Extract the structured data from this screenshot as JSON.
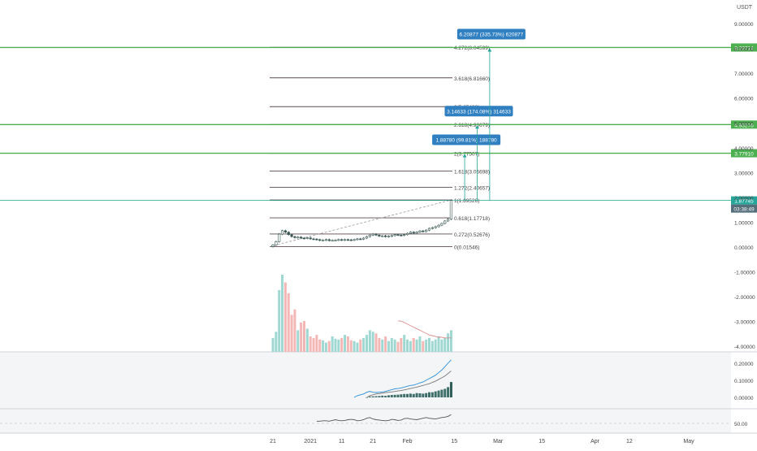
{
  "currency_label": "USDT",
  "chart_data": {
    "type": "candlestick",
    "price_axis": {
      "ticks": [
        {
          "v": 9,
          "label": "9.00000"
        },
        {
          "v": 8,
          "label": "8.00000"
        },
        {
          "v": 7,
          "label": "7.00000"
        },
        {
          "v": 6,
          "label": "6.00000"
        },
        {
          "v": 5,
          "label": "5.00000"
        },
        {
          "v": 4,
          "label": "4.00000"
        },
        {
          "v": 3,
          "label": "3.00000"
        },
        {
          "v": 2,
          "label": "2.00000"
        },
        {
          "v": 1,
          "label": "1.00000"
        },
        {
          "v": 0,
          "label": "0.00000"
        },
        {
          "v": -1,
          "label": "-1.00000"
        },
        {
          "v": -2,
          "label": "-2.00000"
        },
        {
          "v": -3,
          "label": "-3.00000"
        },
        {
          "v": -4,
          "label": "-4.00000"
        }
      ]
    },
    "time_axis": {
      "ticks": [
        {
          "i": 0,
          "label": "21"
        },
        {
          "i": 12,
          "label": "2021"
        },
        {
          "i": 22,
          "label": "11"
        },
        {
          "i": 32,
          "label": "21"
        },
        {
          "i": 43,
          "label": "Feb"
        },
        {
          "i": 58,
          "label": "15"
        },
        {
          "i": 72,
          "label": "Mar"
        },
        {
          "i": 86,
          "label": "15"
        },
        {
          "i": 103,
          "label": "Apr"
        },
        {
          "i": 114,
          "label": "12"
        },
        {
          "i": 133,
          "label": "May"
        }
      ]
    },
    "fib_levels": [
      {
        "ratio": 0,
        "price": 0.01546,
        "label": "0(0.01546)"
      },
      {
        "ratio": 0.272,
        "price": 0.52676,
        "label": "0.272(0.52676)"
      },
      {
        "ratio": 0.618,
        "price": 1.17718,
        "label": "0.618(1.17718)"
      },
      {
        "ratio": 1,
        "price": 1.89526,
        "label": "1(1.89526)"
      },
      {
        "ratio": 1.272,
        "price": 2.40657,
        "label": "1.272(2.40657)"
      },
      {
        "ratio": 1.618,
        "price": 3.05698,
        "label": "1.618(3.05698)"
      },
      {
        "ratio": 2,
        "price": 3.77507,
        "label": "2(3.77507)"
      },
      {
        "ratio": 2.618,
        "price": 4.93679,
        "label": "2.618(4.93679)"
      },
      {
        "ratio": 3,
        "price": 5.65488,
        "label": "3(5.65488)"
      },
      {
        "ratio": 3.618,
        "price": 6.8166,
        "label": "3.618(6.81660)"
      },
      {
        "ratio": 4.272,
        "price": 8.04599,
        "label": "4.272(8.04599)"
      }
    ],
    "horizontal_lines": [
      {
        "price": 8.03714,
        "label": "8.03714",
        "color": "#4caf50"
      },
      {
        "price": 4.93276,
        "label": "4.93276",
        "color": "#4caf50"
      },
      {
        "price": 3.7791,
        "label": "3.77910",
        "color": "#4caf50"
      },
      {
        "price": 1.87745,
        "label": "1.87745",
        "color": "#26a69a"
      }
    ],
    "current_price": {
      "price": 1.87745,
      "label": "1.87745",
      "countdown": "03:38:49"
    },
    "targets": [
      {
        "start_i": 66,
        "target": 3.7791,
        "label": "1.88780 (99.81%) 188780"
      },
      {
        "start_i": 70,
        "target": 4.93276,
        "label": "3.14633 (174.08%) 314633"
      },
      {
        "start_i": 74,
        "target": 8.03714,
        "label": "6.20877 (335.73%) 620877"
      }
    ],
    "closes": [
      0.08,
      0.22,
      0.52,
      0.66,
      0.6,
      0.5,
      0.42,
      0.38,
      0.4,
      0.36,
      0.35,
      0.37,
      0.33,
      0.32,
      0.3,
      0.27,
      0.28,
      0.3,
      0.26,
      0.27,
      0.28,
      0.3,
      0.28,
      0.3,
      0.29,
      0.28,
      0.3,
      0.33,
      0.32,
      0.36,
      0.42,
      0.48,
      0.52,
      0.48,
      0.44,
      0.45,
      0.42,
      0.44,
      0.46,
      0.5,
      0.48,
      0.47,
      0.5,
      0.55,
      0.6,
      0.56,
      0.6,
      0.65,
      0.62,
      0.68,
      0.75,
      0.78,
      0.82,
      0.88,
      0.95,
      1.05,
      1.12,
      1.87745
    ],
    "volumes": [
      18,
      26,
      80,
      100,
      90,
      76,
      48,
      55,
      28,
      38,
      40,
      30,
      20,
      18,
      22,
      16,
      15,
      12,
      14,
      20,
      17,
      16,
      18,
      22,
      20,
      15,
      14,
      12,
      16,
      18,
      22,
      28,
      26,
      24,
      18,
      16,
      20,
      14,
      18,
      16,
      13,
      18,
      22,
      16,
      14,
      18,
      16,
      20,
      14,
      16,
      18,
      14,
      16,
      20,
      16,
      18,
      24,
      28
    ],
    "volume_ma": [
      null,
      null,
      null,
      null,
      null,
      null,
      null,
      null,
      null,
      null,
      null,
      null,
      null,
      null,
      null,
      null,
      null,
      null,
      null,
      null,
      null,
      null,
      null,
      null,
      null,
      null,
      null,
      null,
      null,
      null,
      null,
      null,
      null,
      null,
      null,
      null,
      null,
      null,
      null,
      null,
      40,
      40,
      38,
      36,
      34,
      32,
      30,
      28,
      26,
      24,
      22,
      21,
      20,
      19,
      19,
      18,
      18,
      18
    ],
    "macd": [
      null,
      null,
      null,
      null,
      null,
      null,
      null,
      null,
      null,
      null,
      null,
      null,
      null,
      null,
      null,
      null,
      null,
      null,
      null,
      null,
      null,
      null,
      null,
      null,
      null,
      null,
      0.0,
      0.01,
      0.015,
      0.02,
      0.03,
      0.035,
      0.03,
      0.028,
      0.03,
      0.032,
      0.035,
      0.04,
      0.045,
      0.05,
      0.052,
      0.055,
      0.06,
      0.065,
      0.07,
      0.072,
      0.078,
      0.085,
      0.09,
      0.1,
      0.11,
      0.12,
      0.13,
      0.145,
      0.16,
      0.18,
      0.2,
      0.22
    ],
    "macd_signal": [
      null,
      null,
      null,
      null,
      null,
      null,
      null,
      null,
      null,
      null,
      null,
      null,
      null,
      null,
      null,
      null,
      null,
      null,
      null,
      null,
      null,
      null,
      null,
      null,
      null,
      null,
      null,
      null,
      null,
      null,
      0.0,
      0.01,
      0.015,
      0.02,
      0.022,
      0.025,
      0.028,
      0.03,
      0.032,
      0.035,
      0.038,
      0.04,
      0.044,
      0.048,
      0.052,
      0.056,
      0.06,
      0.065,
      0.07,
      0.075,
      0.08,
      0.088,
      0.095,
      0.105,
      0.115,
      0.125,
      0.14,
      0.155
    ],
    "macd_hist": [
      null,
      null,
      null,
      null,
      null,
      null,
      null,
      null,
      null,
      null,
      null,
      null,
      null,
      null,
      null,
      null,
      null,
      null,
      null,
      null,
      null,
      null,
      null,
      null,
      null,
      null,
      null,
      null,
      null,
      null,
      0.0,
      0.005,
      0.006,
      0.007,
      0.008,
      0.01,
      0.009,
      0.012,
      0.014,
      0.015,
      0.016,
      0.018,
      0.02,
      0.02,
      0.022,
      0.02,
      0.025,
      0.024,
      0.022,
      0.025,
      0.03,
      0.03,
      0.035,
      0.04,
      0.045,
      0.05,
      0.06,
      0.09
    ],
    "macd_axis": [
      {
        "v": 0.2,
        "label": "0.20000"
      },
      {
        "v": 0.1,
        "label": "0.10000"
      },
      {
        "v": 0.0,
        "label": "0.00000"
      }
    ],
    "rsi": [
      null,
      null,
      null,
      null,
      null,
      null,
      null,
      null,
      null,
      null,
      null,
      null,
      null,
      null,
      56,
      56,
      57,
      57,
      56,
      58,
      60,
      58,
      57,
      58,
      60,
      61,
      60,
      57,
      58,
      60,
      64,
      66,
      62,
      60,
      59,
      58,
      57,
      58,
      61,
      60,
      58,
      59,
      63,
      64,
      62,
      61,
      60,
      62,
      64,
      66,
      64,
      63,
      62,
      64,
      66,
      67,
      69,
      74
    ],
    "rsi_axis": [
      {
        "v": 50,
        "label": "50.00"
      }
    ]
  }
}
